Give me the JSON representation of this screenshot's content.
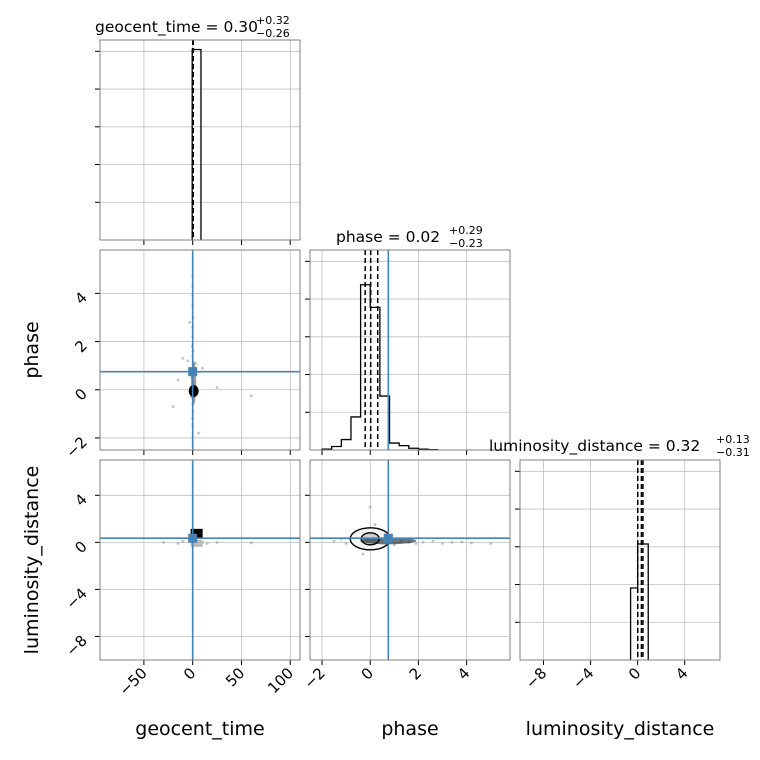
{
  "chart_data": {
    "type": "corner",
    "parameters": [
      "geocent_time",
      "phase",
      "luminosity_distance"
    ],
    "colors": {
      "truth": "#4682b4",
      "hist": "#000000",
      "grid": "#c0c0c0",
      "frame": "#808080"
    },
    "grid": true,
    "truths": {
      "geocent_time": 0.0,
      "phase": 0.75,
      "luminosity_distance": 0.35
    },
    "titles": {
      "geocent_time": {
        "name": "geocent_time = ",
        "value": "0.30",
        "plus": "+0.32",
        "minus": "−0.26"
      },
      "phase": {
        "name": "phase = ",
        "value": "0.02",
        "plus": "+0.29",
        "minus": "−0.23"
      },
      "luminosity_distance": {
        "name": "luminosity_distance = ",
        "value": "0.32",
        "plus": "+0.13",
        "minus": "−0.31"
      }
    },
    "axes": {
      "geocent_time": {
        "range": [
          -95,
          110
        ],
        "ticks": [
          -50,
          0,
          50,
          100
        ],
        "tick_labels": [
          "−50",
          "0",
          "50",
          "100"
        ]
      },
      "phase": {
        "range": [
          -2.5,
          5.8
        ],
        "ticks": [
          -2,
          0,
          2,
          4
        ],
        "tick_labels": [
          "−2",
          "0",
          "2",
          "4"
        ]
      },
      "luminosity_distance": {
        "range": [
          -10,
          7
        ],
        "ticks": [
          -8,
          -4,
          0,
          4
        ],
        "tick_labels": [
          "−8",
          "−4",
          "0",
          "4"
        ]
      }
    },
    "histograms": {
      "geocent_time": {
        "edges": [
          -0.5,
          8.5
        ],
        "counts": [
          1.0
        ],
        "ymax": 1.05,
        "quantiles": [
          0.04,
          0.3,
          0.62
        ]
      },
      "phase": {
        "edges": [
          -2.0,
          -1.6,
          -1.2,
          -0.8,
          -0.4,
          0.0,
          0.4,
          0.8,
          1.2,
          1.6,
          2.0,
          2.4,
          2.8
        ],
        "counts": [
          0.005,
          0.02,
          0.06,
          0.19,
          0.95,
          0.82,
          0.31,
          0.04,
          0.025,
          0.01,
          0.005,
          0.002
        ],
        "ymax": 1.15,
        "quantiles": [
          -0.21,
          0.02,
          0.31
        ]
      },
      "luminosity_distance": {
        "edges": [
          -0.6,
          0.0,
          0.35,
          0.9
        ],
        "counts": [
          0.36,
          0.58,
          0.58
        ],
        "ymax": 1.0,
        "quantiles": [
          0.01,
          0.32,
          0.45
        ]
      }
    },
    "scatter": {
      "phase_vs_geocent_time": {
        "points": [
          [
            0,
            4.7
          ],
          [
            0,
            4.3
          ],
          [
            0,
            3.9
          ],
          [
            0,
            3.5
          ],
          [
            0.5,
            3.0
          ],
          [
            0,
            2.6
          ],
          [
            0,
            2.2
          ],
          [
            -0.5,
            1.8
          ],
          [
            0.5,
            1.6
          ],
          [
            0,
            1.4
          ],
          [
            -10,
            1.3
          ],
          [
            -5,
            1.2
          ],
          [
            10,
            0.9
          ],
          [
            1,
            0.6
          ],
          [
            -1,
            0.5
          ],
          [
            0,
            0.3
          ],
          [
            0.5,
            0.1
          ],
          [
            1,
            -0.1
          ],
          [
            -1,
            -0.3
          ],
          [
            0,
            -0.6
          ],
          [
            0.5,
            -0.9
          ],
          [
            0,
            -1.2
          ],
          [
            0,
            -1.5
          ],
          [
            -15,
            0.4
          ],
          [
            25,
            0.1
          ],
          [
            60,
            -0.25
          ],
          [
            -20,
            -0.7
          ],
          [
            6,
            -1.8
          ],
          [
            -3,
            2.8
          ],
          [
            3,
            1.1
          ]
        ],
        "core": [
          1,
          -0.05
        ]
      },
      "luminosity_distance_vs_geocent_time": {
        "points": [
          [
            -30,
            0.0
          ],
          [
            -15,
            -0.1
          ],
          [
            -10,
            0.1
          ],
          [
            10,
            0.0
          ],
          [
            15,
            -0.1
          ],
          [
            25,
            0.0
          ],
          [
            60,
            -0.05
          ],
          [
            5,
            0.9
          ],
          [
            8,
            0.6
          ]
        ],
        "core": [
          2,
          0.3
        ]
      },
      "luminosity_distance_vs_phase": {
        "points": [
          [
            -1.5,
            0.1
          ],
          [
            -1.2,
            0.3
          ],
          [
            -1.0,
            -0.1
          ],
          [
            1.0,
            -0.2
          ],
          [
            1.3,
            0.1
          ],
          [
            1.6,
            0.0
          ],
          [
            1.9,
            -0.1
          ],
          [
            2.2,
            0.0
          ],
          [
            2.6,
            0.1
          ],
          [
            3.0,
            -0.1
          ],
          [
            3.4,
            0.0
          ],
          [
            3.8,
            0.05
          ],
          [
            4.2,
            -0.05
          ],
          [
            5.0,
            -0.1
          ],
          [
            0.0,
            3.0
          ],
          [
            0.2,
            1.5
          ],
          [
            -0.3,
            -1.0
          ]
        ],
        "core": [
          0,
          0.3
        ]
      }
    }
  }
}
